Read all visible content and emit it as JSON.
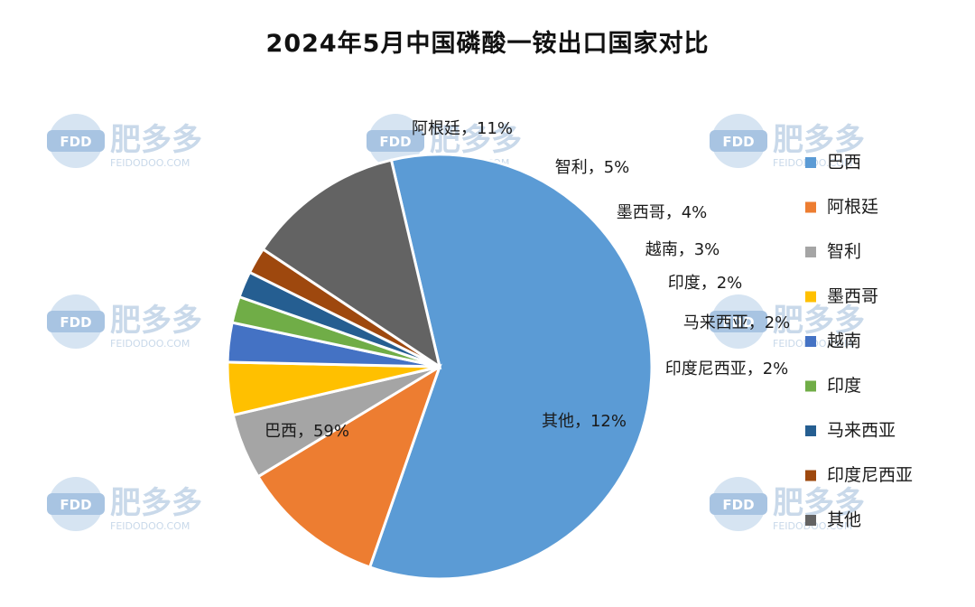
{
  "chart_data": {
    "type": "pie",
    "title": "2024年5月中国磷酸一铵出口国家对比",
    "slices": [
      {
        "name": "巴西",
        "value": 59,
        "label": "巴西，59%",
        "color": "#5b9bd5"
      },
      {
        "name": "阿根廷",
        "value": 11,
        "label": "阿根廷，11%",
        "color": "#ed7d31"
      },
      {
        "name": "智利",
        "value": 5,
        "label": "智利，5%",
        "color": "#a5a5a5"
      },
      {
        "name": "墨西哥",
        "value": 4,
        "label": "墨西哥，4%",
        "color": "#ffc000"
      },
      {
        "name": "越南",
        "value": 3,
        "label": "越南，3%",
        "color": "#4472c4"
      },
      {
        "name": "印度",
        "value": 2,
        "label": "印度，2%",
        "color": "#70ad47"
      },
      {
        "name": "马来西亚",
        "value": 2,
        "label": "马来西亚，2%",
        "color": "#255e91"
      },
      {
        "name": "印度尼西亚",
        "value": 2,
        "label": "印度尼西亚，2%",
        "color": "#9e480e"
      },
      {
        "name": "其他",
        "value": 12,
        "label": "其他，12%",
        "color": "#636363"
      }
    ],
    "legend_position": "right"
  },
  "watermark": {
    "brand": "肥多多",
    "badge": "FDD",
    "url": "FEIDODOO.COM"
  }
}
